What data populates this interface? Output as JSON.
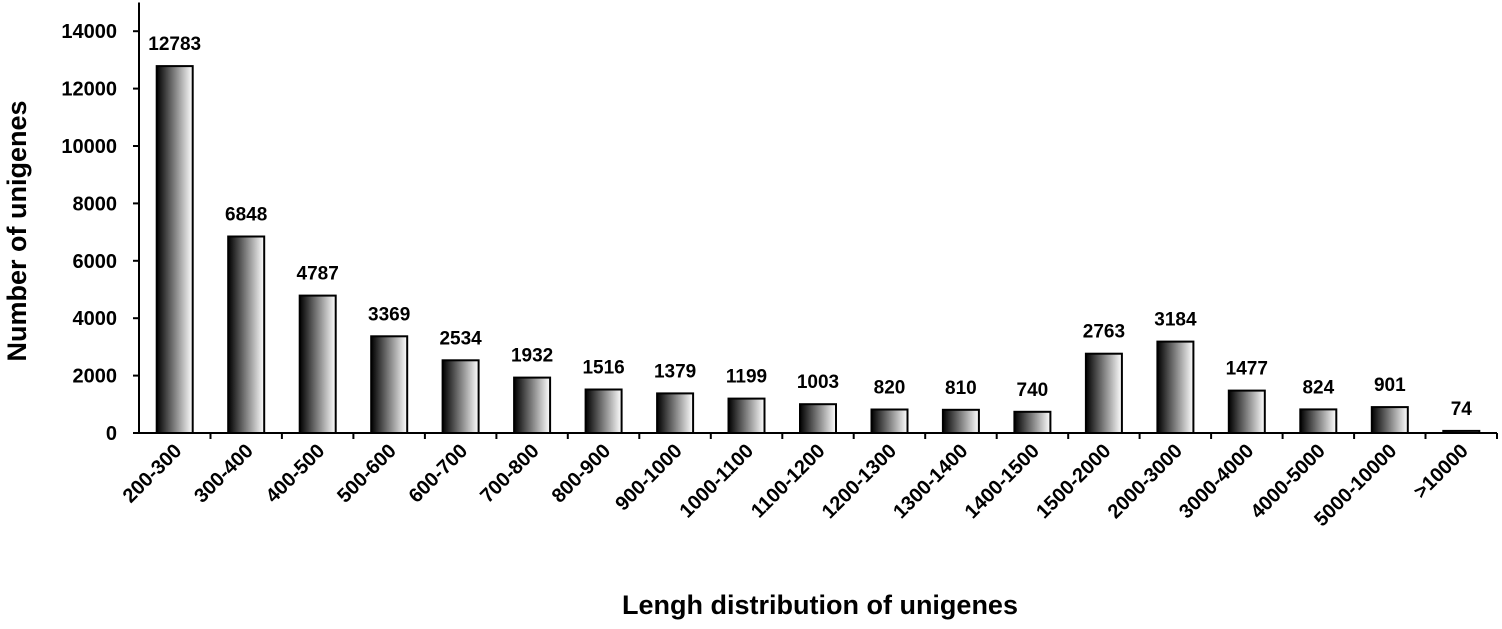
{
  "chart_data": {
    "type": "bar",
    "title": "",
    "xlabel": "Lengh distribution of unigenes",
    "ylabel": "Number of unigenes",
    "categories": [
      "200-300",
      "300-400",
      "400-500",
      "500-600",
      "600-700",
      "700-800",
      "800-900",
      "900-1000",
      "1000-1100",
      "1100-1200",
      "1200-1300",
      "1300-1400",
      "1400-1500",
      "1500-2000",
      "2000-3000",
      "3000-4000",
      "4000-5000",
      "5000-10000",
      ">10000"
    ],
    "values": [
      12783,
      6848,
      4787,
      3369,
      2534,
      1932,
      1516,
      1379,
      1199,
      1003,
      820,
      810,
      740,
      2763,
      3184,
      1477,
      824,
      901,
      74
    ],
    "data_labels": [
      "12783",
      "6848",
      "4787",
      "3369",
      "2534",
      "1932",
      "1516",
      "1379",
      "1199",
      "1003",
      "820",
      "810",
      "740",
      "2763",
      "3184",
      "1477",
      "824",
      "901",
      "74"
    ],
    "y_ticks": [
      0,
      2000,
      4000,
      6000,
      8000,
      10000,
      12000,
      14000
    ],
    "y_tick_labels": [
      "0",
      "2000",
      "4000",
      "6000",
      "8000",
      "10000",
      "12000",
      "14000"
    ],
    "ylim": [
      0,
      15000
    ],
    "grid": false,
    "legend": "none",
    "bar_gradient": [
      "#000000",
      "#ffffff"
    ]
  }
}
